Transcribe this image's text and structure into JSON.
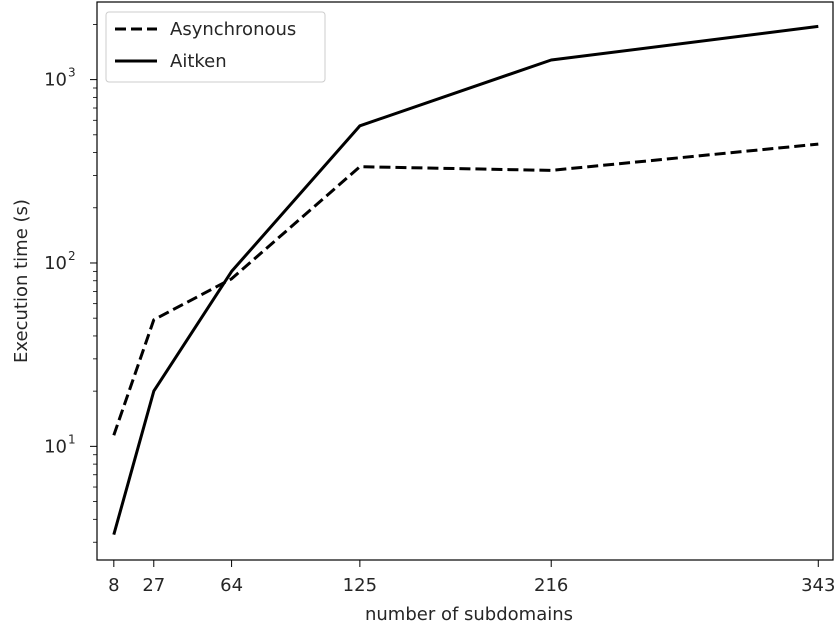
{
  "chart_data": {
    "type": "line",
    "xlabel": "number of subdomains",
    "ylabel": "Execution time (s)",
    "x": [
      8,
      27,
      64,
      125,
      216,
      343
    ],
    "xticks": [
      "8",
      "27",
      "64",
      "125",
      "216",
      "343"
    ],
    "xlim": [
      0,
      350
    ],
    "yscale": "log",
    "ylim": [
      2.4,
      2650
    ],
    "yticks": [
      {
        "value": 10,
        "base": "10",
        "exp": "1"
      },
      {
        "value": 100,
        "base": "10",
        "exp": "2"
      },
      {
        "value": 1000,
        "base": "10",
        "exp": "3"
      }
    ],
    "legend_position": "top-left",
    "grid": false,
    "series": [
      {
        "name": "Asynchronous",
        "style": "dashed",
        "color": "#000000",
        "values": [
          11.5,
          49,
          82,
          335,
          320,
          445
        ]
      },
      {
        "name": "Aitken",
        "style": "solid",
        "color": "#000000",
        "values": [
          3.3,
          20,
          90,
          560,
          1280,
          1950
        ]
      }
    ]
  }
}
